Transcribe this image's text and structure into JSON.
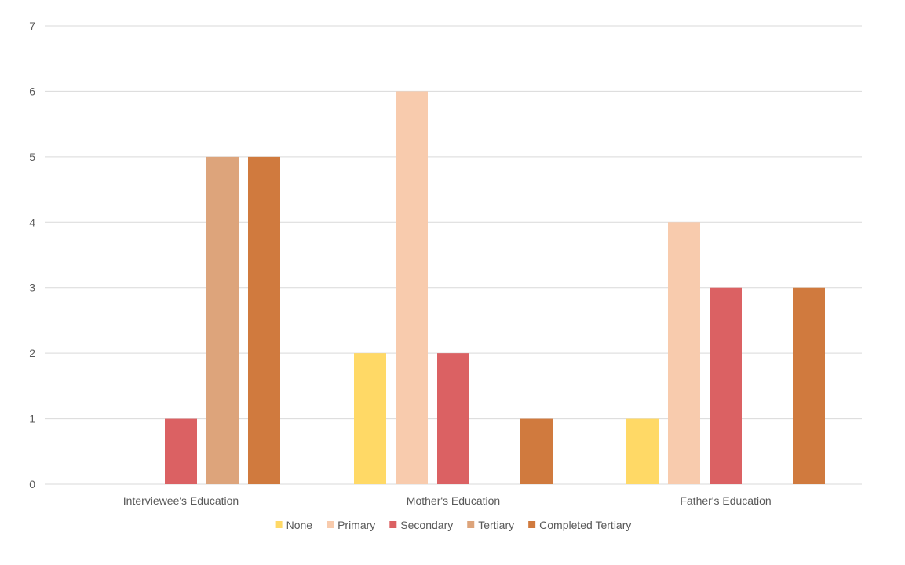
{
  "chart_data": {
    "type": "bar",
    "title": "",
    "xlabel": "",
    "ylabel": "",
    "ylim": [
      0,
      7
    ],
    "yticks": [
      0,
      1,
      2,
      3,
      4,
      5,
      6,
      7
    ],
    "grid": true,
    "legend_position": "bottom",
    "categories": [
      "Interviewee's Education",
      "Mother's Education",
      "Father's Education"
    ],
    "series": [
      {
        "name": "None",
        "color": "#FFD966",
        "values": [
          0,
          2,
          1
        ]
      },
      {
        "name": "Primary",
        "color": "#F8CBAD",
        "values": [
          0,
          6,
          4
        ]
      },
      {
        "name": "Secondary",
        "color": "#DB6163",
        "values": [
          1,
          2,
          3
        ]
      },
      {
        "name": "Tertiary",
        "color": "#DDA47B",
        "values": [
          5,
          0,
          0
        ]
      },
      {
        "name": "Completed Tertiary",
        "color": "#D07A3E",
        "values": [
          5,
          1,
          3
        ]
      }
    ]
  }
}
